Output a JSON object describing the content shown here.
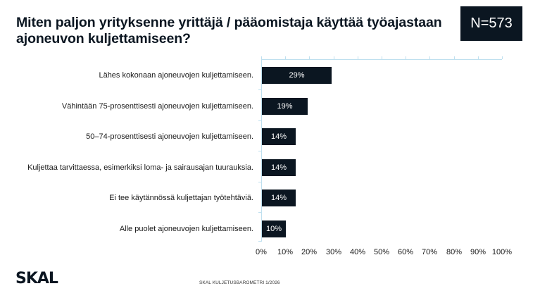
{
  "title": "Miten paljon yrityksenne yrittäjä / pääomistaja käyttää työajastaan ajoneuvon kuljettamiseen?",
  "sample_size": "N=573",
  "footer": {
    "logo": "SKAL",
    "source": "SKAL KULJETUSBAROMETRI 1/2026"
  },
  "colors": {
    "bar": "#0b1621",
    "axis": "#bfe0ef",
    "bar_label": "#ffffff"
  },
  "chart_data": {
    "type": "bar",
    "orientation": "horizontal",
    "title": "Miten paljon yrityksenne yrittäjä / pääomistaja käyttää työajastaan ajoneuvon kuljettamiseen?",
    "categories": [
      "Lähes kokonaan ajoneuvojen kuljettamiseen.",
      "Vähintään 75-prosenttisesti ajoneuvojen kuljettamiseen.",
      "50–74-prosenttisesti ajoneuvojen kuljettamiseen.",
      "Kuljettaa tarvittaessa, esimerkiksi loma- ja sairausajan tuurauksia.",
      "Ei tee käytännössä kuljettajan työtehtäviä.",
      "Alle puolet ajoneuvojen kuljettamiseen."
    ],
    "values": [
      29,
      19,
      14,
      14,
      14,
      10
    ],
    "value_labels": [
      "29%",
      "19%",
      "14%",
      "14%",
      "14%",
      "10%"
    ],
    "xlabel": "",
    "ylabel": "",
    "xlim": [
      0,
      100
    ],
    "x_ticks": [
      "0%",
      "10%",
      "20%",
      "30%",
      "40%",
      "50%",
      "60%",
      "70%",
      "80%",
      "90%",
      "100%"
    ],
    "grid": false,
    "legend": null,
    "annotation": "N=573"
  }
}
